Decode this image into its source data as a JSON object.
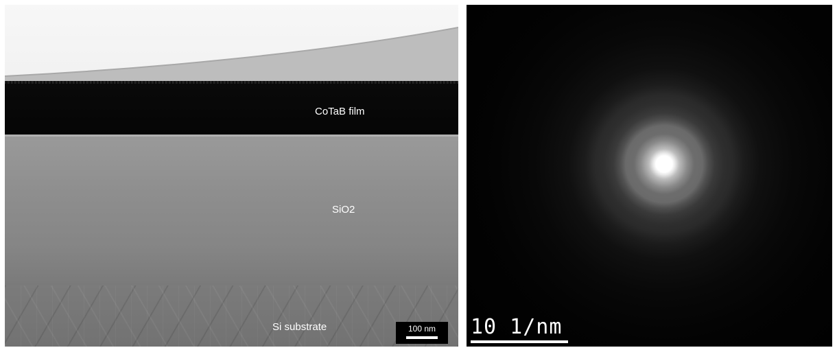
{
  "tem_image": {
    "layers": {
      "top_layer_label": "CoTaB film",
      "middle_layer_label": "SiO2",
      "bottom_layer_label": "Si substrate"
    },
    "scale_bar": "100 nm"
  },
  "diffraction_image": {
    "scale_bar": "10 1/nm"
  }
}
